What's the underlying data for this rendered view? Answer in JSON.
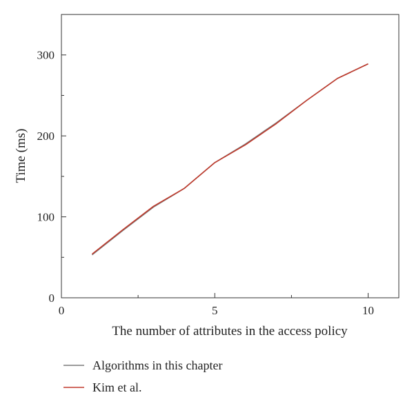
{
  "chart_data": {
    "type": "line",
    "title": "",
    "xlabel": "The number of attributes in the access policy",
    "ylabel": "Time (ms)",
    "xlim": [
      0,
      11
    ],
    "ylim": [
      0,
      350
    ],
    "xticks": [
      0,
      5,
      10
    ],
    "yticks": [
      0,
      100,
      200,
      300
    ],
    "grid": false,
    "legend": "bottom-left, below plot",
    "series": [
      {
        "name": "Algorithms in this chapter",
        "color": "#7a7a7a",
        "x": [
          1,
          2,
          3,
          4,
          5,
          6,
          7,
          8,
          9,
          10
        ],
        "y": [
          53,
          83,
          112,
          135,
          167,
          190,
          216,
          244,
          271,
          289
        ]
      },
      {
        "name": "Kim et al.",
        "color": "#c0392b",
        "x": [
          1,
          2,
          3,
          4,
          5,
          6,
          7,
          8,
          9,
          10
        ],
        "y": [
          54,
          84,
          113,
          135,
          167,
          189,
          215,
          244,
          271,
          289
        ]
      }
    ]
  }
}
